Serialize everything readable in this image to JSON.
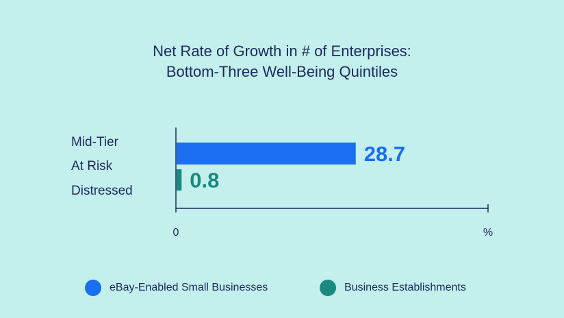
{
  "title_line1": "Net Rate of Growth in # of Enterprises:",
  "title_line2": "Bottom-Three Well-Being Quintiles",
  "colors": {
    "background": "#c3efec",
    "text": "#1b2a5c",
    "ebay": "#1a6ff0",
    "business": "#1a8a7e"
  },
  "chart_data": {
    "type": "bar",
    "orientation": "horizontal",
    "categories": [
      "Mid-Tier",
      "At Risk",
      "Distressed"
    ],
    "series": [
      {
        "name": "eBay-Enabled Small Businesses",
        "value": 28.7,
        "label": "28.7",
        "color": "#1a6ff0"
      },
      {
        "name": "Business Establishments",
        "value": 0.8,
        "label": "0.8",
        "color": "#1a8a7e"
      }
    ],
    "x_tick_start": "0",
    "x_tick_end": "%",
    "xlim": [
      0,
      50
    ],
    "grid": false,
    "legend_position": "bottom"
  }
}
